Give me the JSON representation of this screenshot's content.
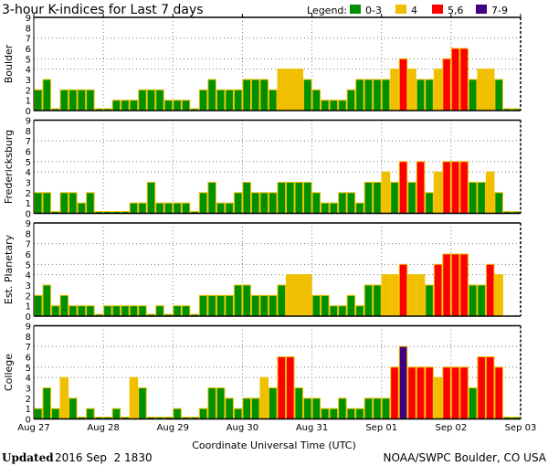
{
  "chart_data": {
    "type": "bar",
    "title": "3-hour K-indices for Last 7 days",
    "xlabel": "Coordinate Universal Time (UTC)",
    "ylim": [
      0,
      9
    ],
    "yticks": [
      "0",
      "1",
      "2",
      "3",
      "4",
      "5",
      "6",
      "7",
      "8",
      "9"
    ],
    "x_tick_labels": [
      "Aug 27",
      "Aug 28",
      "Aug 29",
      "Aug 30",
      "Aug 31",
      "Sep 01",
      "Sep 02",
      "Sep 03"
    ],
    "bars_per_day": 8,
    "legend": {
      "label": "Legend:",
      "items": [
        {
          "label": "0-3",
          "color": "#009000"
        },
        {
          "label": "4",
          "color": "#f0c000"
        },
        {
          "label": "5,6",
          "color": "#ff0000"
        },
        {
          "label": "7-9",
          "color": "#400080"
        }
      ]
    },
    "series": [
      {
        "name": "Boulder",
        "values": [
          2,
          3,
          0,
          2,
          2,
          2,
          2,
          0,
          0,
          1,
          1,
          1,
          2,
          2,
          2,
          1,
          1,
          1,
          0,
          2,
          3,
          2,
          2,
          2,
          3,
          3,
          3,
          2,
          4,
          4,
          4,
          3,
          2,
          1,
          1,
          1,
          2,
          3,
          3,
          3,
          3,
          4,
          5,
          4,
          3,
          3,
          4,
          5,
          6,
          6,
          3,
          4,
          4,
          3,
          0,
          0
        ]
      },
      {
        "name": "Fredericksburg",
        "values": [
          2,
          2,
          0,
          2,
          2,
          1,
          2,
          0,
          0,
          0,
          0,
          1,
          1,
          3,
          1,
          1,
          1,
          1,
          0,
          2,
          3,
          1,
          1,
          2,
          3,
          2,
          2,
          2,
          3,
          3,
          3,
          3,
          2,
          1,
          1,
          2,
          2,
          1,
          3,
          3,
          4,
          3,
          5,
          3,
          5,
          2,
          4,
          5,
          5,
          5,
          3,
          3,
          4,
          2,
          0,
          0
        ]
      },
      {
        "name": "Est. Planetary",
        "values": [
          2,
          3,
          1,
          2,
          1,
          1,
          1,
          0,
          1,
          1,
          1,
          1,
          1,
          0,
          1,
          0,
          1,
          1,
          0,
          2,
          2,
          2,
          2,
          3,
          3,
          2,
          2,
          2,
          3,
          4,
          4,
          4,
          2,
          2,
          1,
          1,
          2,
          1,
          3,
          3,
          4,
          4,
          5,
          4,
          4,
          3,
          5,
          6,
          6,
          6,
          3,
          3,
          5,
          4,
          null,
          null
        ]
      },
      {
        "name": "College",
        "values": [
          1,
          3,
          1,
          4,
          2,
          0,
          1,
          0,
          0,
          1,
          0,
          4,
          3,
          0,
          0,
          0,
          1,
          0,
          0,
          1,
          3,
          3,
          2,
          1,
          2,
          2,
          4,
          3,
          6,
          6,
          3,
          2,
          2,
          1,
          1,
          2,
          1,
          1,
          2,
          2,
          2,
          5,
          7,
          5,
          5,
          5,
          4,
          5,
          5,
          5,
          3,
          6,
          6,
          5,
          0,
          0
        ]
      }
    ]
  },
  "footer": {
    "updated_label": "Updated",
    "updated_value": "2016 Sep  2 1830",
    "source": "NOAA/SWPC Boulder, CO USA"
  }
}
